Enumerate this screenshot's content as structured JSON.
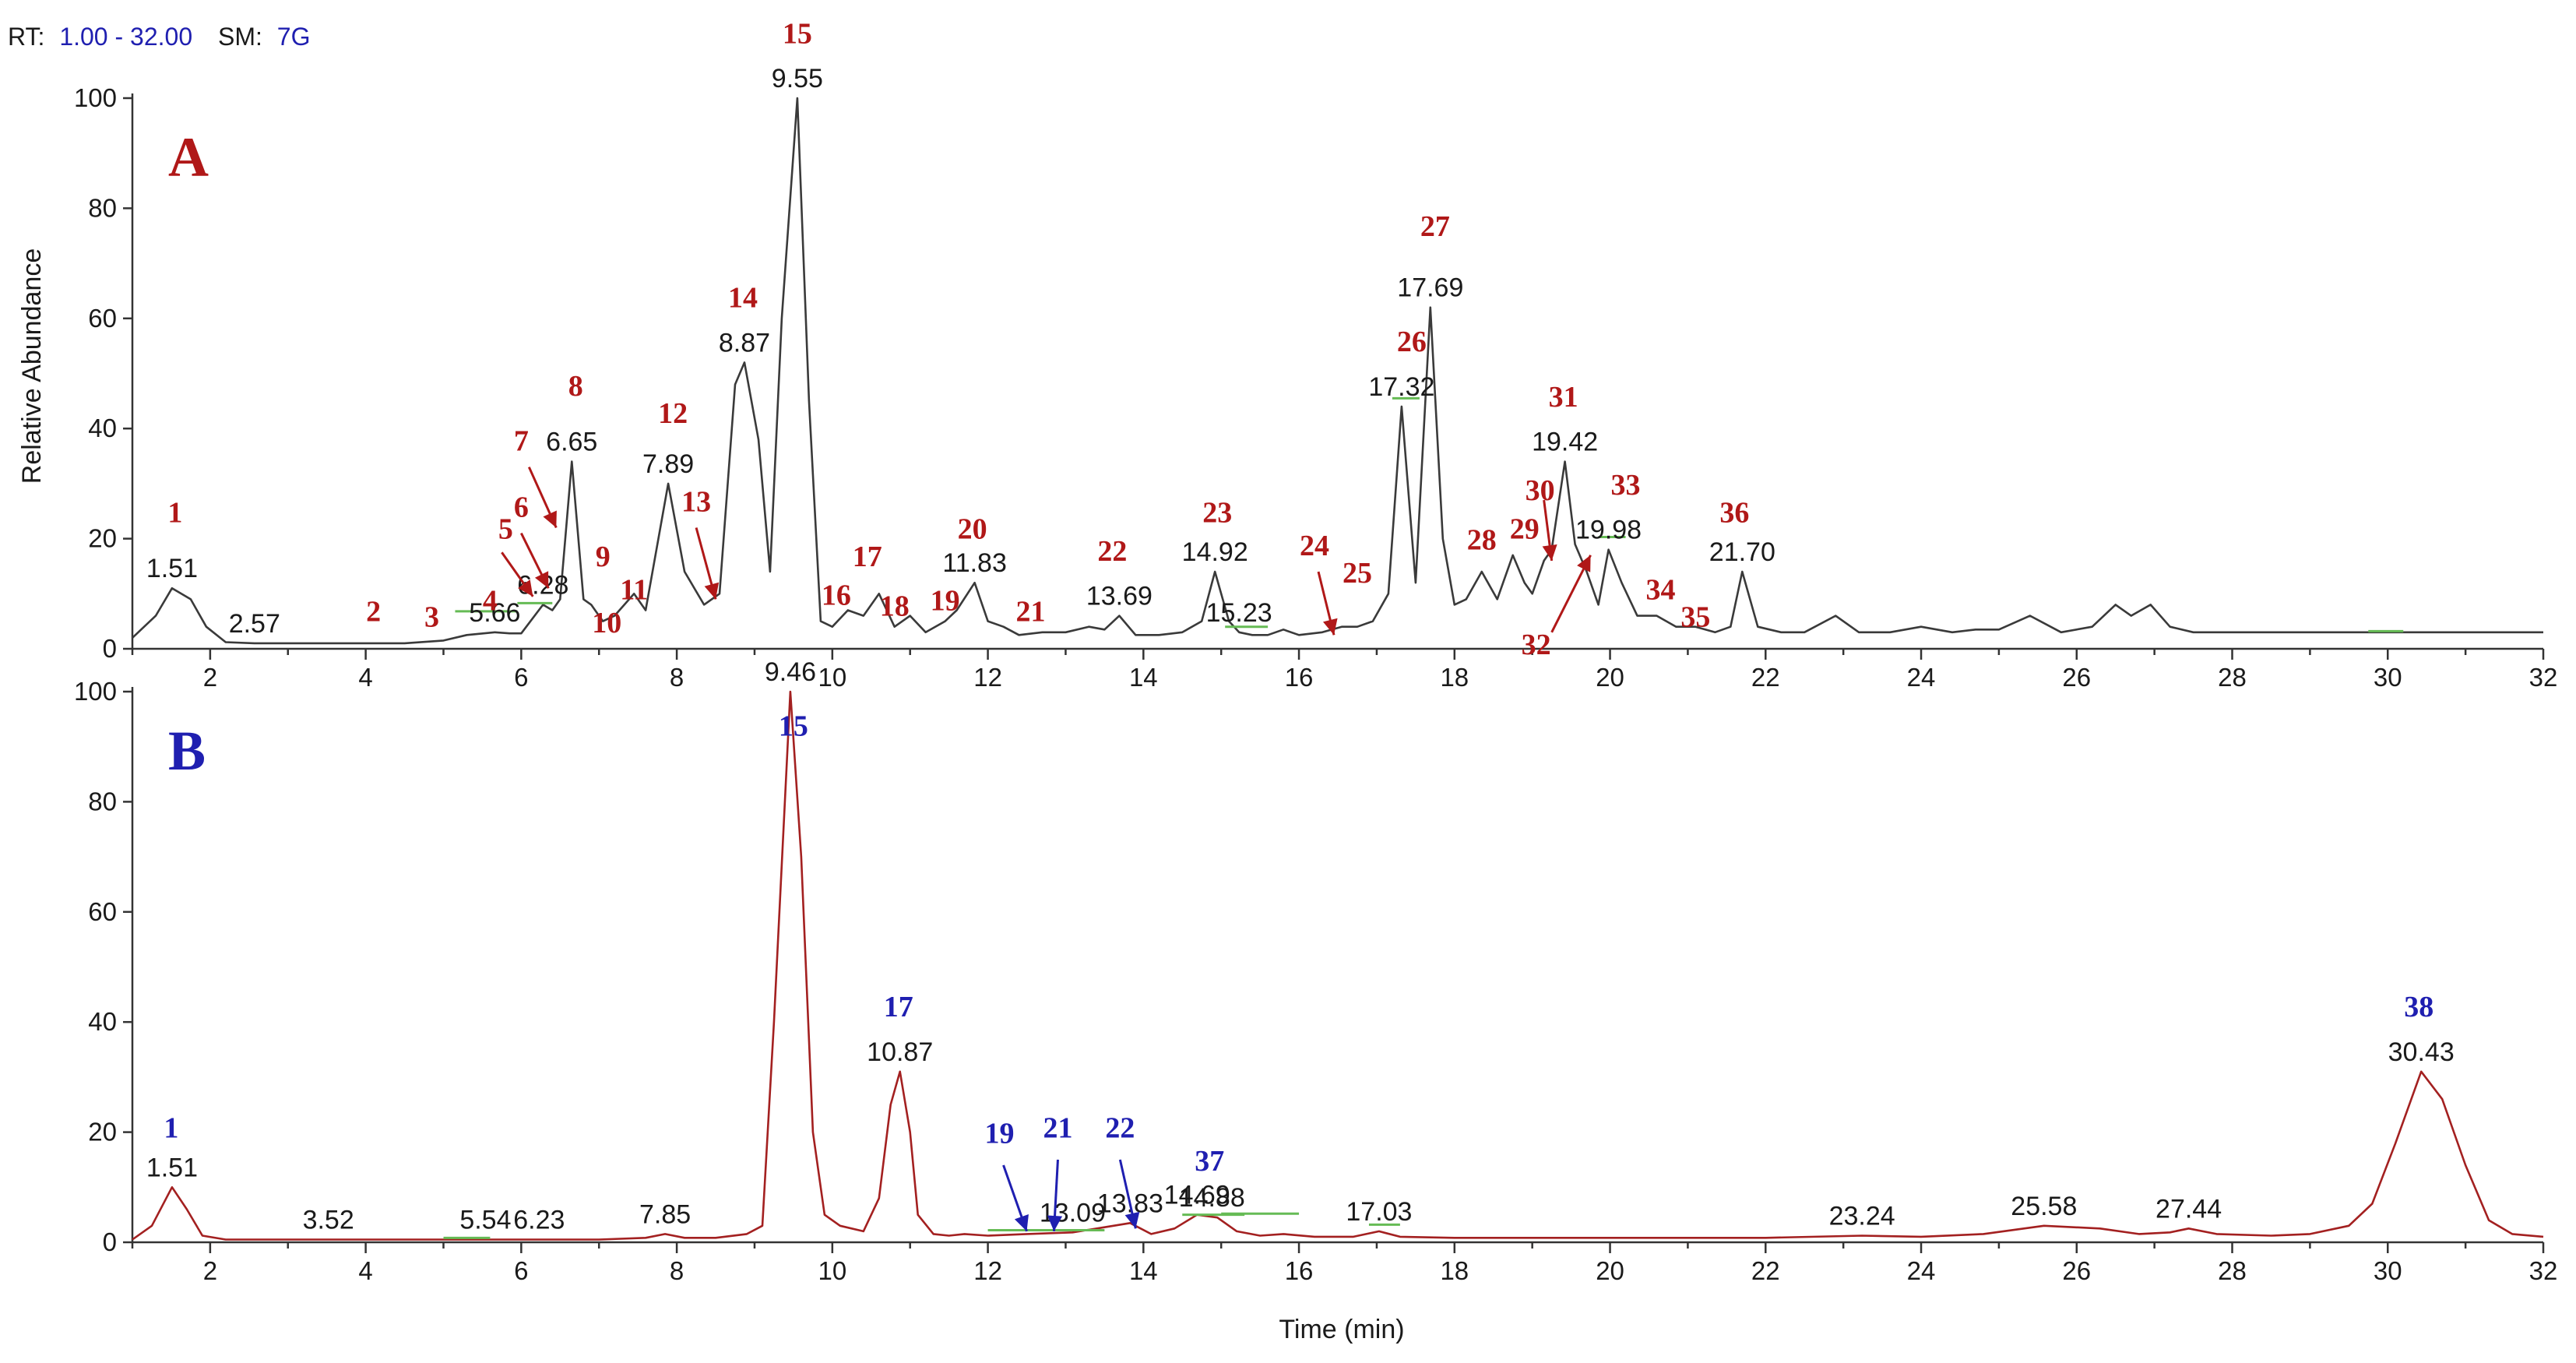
{
  "header": {
    "rt_prefix": "RT:",
    "rt_value": "1.00 - 32.00",
    "sm_prefix": "SM:",
    "sm_value": "7G"
  },
  "colors": {
    "trace_a": "#3a3a3a",
    "trace_b": "#a32020",
    "peak_num_a": "#b01818",
    "peak_num_b": "#1f1fb0",
    "header_value": "#1f1fb0",
    "baseline_marker": "#66bb55"
  },
  "chart_data": [
    {
      "type": "line",
      "panel_letter": "A",
      "xlabel": "",
      "ylabel": "Relative Abundance",
      "xlim": [
        1,
        32
      ],
      "ylim": [
        0,
        100
      ],
      "x_ticks": [
        "2",
        "4",
        "6",
        "8",
        "10",
        "12",
        "14",
        "16",
        "18",
        "20",
        "22",
        "24",
        "26",
        "28",
        "30",
        "32"
      ],
      "y_ticks": [
        "0",
        "20",
        "40",
        "60",
        "80",
        "100"
      ],
      "series": [
        {
          "color": "#3a3a3a",
          "x": [
            1.0,
            1.3,
            1.51,
            1.75,
            1.95,
            2.2,
            2.57,
            3.5,
            4.5,
            5.0,
            5.3,
            5.66,
            5.85,
            6.0,
            6.28,
            6.4,
            6.5,
            6.65,
            6.8,
            6.9,
            7.05,
            7.2,
            7.45,
            7.6,
            7.89,
            8.1,
            8.35,
            8.55,
            8.75,
            8.87,
            9.05,
            9.2,
            9.35,
            9.55,
            9.7,
            9.85,
            10.0,
            10.2,
            10.4,
            10.6,
            10.8,
            11.0,
            11.2,
            11.45,
            11.6,
            11.83,
            12.0,
            12.2,
            12.4,
            12.7,
            13.0,
            13.3,
            13.5,
            13.69,
            13.9,
            14.2,
            14.5,
            14.75,
            14.92,
            15.1,
            15.23,
            15.4,
            15.6,
            15.8,
            16.0,
            16.3,
            16.55,
            16.75,
            16.95,
            17.15,
            17.32,
            17.5,
            17.69,
            17.85,
            18.0,
            18.15,
            18.35,
            18.55,
            18.75,
            18.9,
            19.0,
            19.15,
            19.25,
            19.42,
            19.55,
            19.7,
            19.85,
            19.98,
            20.15,
            20.35,
            20.6,
            20.85,
            21.1,
            21.35,
            21.55,
            21.7,
            21.9,
            22.2,
            22.5,
            22.9,
            23.2,
            23.6,
            24.0,
            24.4,
            24.7,
            25.0,
            25.4,
            25.8,
            26.2,
            26.5,
            26.7,
            26.95,
            27.2,
            27.5,
            28.0,
            29.0,
            30.0,
            31.0,
            32.0
          ],
          "y": [
            2,
            6,
            11,
            9,
            4,
            1.2,
            1,
            1,
            1,
            1.5,
            2.5,
            3,
            2.8,
            2.8,
            8,
            7,
            9,
            34,
            9,
            8,
            5,
            6,
            10,
            7,
            30,
            14,
            8,
            10,
            48,
            52,
            38,
            14,
            60,
            100,
            45,
            5,
            4,
            7,
            6,
            10,
            4,
            6,
            3,
            5,
            7,
            12,
            5,
            4,
            2.5,
            3,
            3,
            4,
            3.5,
            6,
            2.5,
            2.5,
            3,
            5,
            14,
            5,
            3,
            2.5,
            2.5,
            3.5,
            2.5,
            3,
            4,
            4,
            5,
            10,
            44,
            12,
            62,
            20,
            8,
            9,
            14,
            9,
            17,
            12,
            10,
            16,
            18,
            34,
            19,
            14,
            8,
            18,
            12,
            6,
            6,
            4,
            4,
            3,
            4,
            14,
            4,
            3,
            3,
            6,
            3,
            3,
            4,
            3,
            3.5,
            3.5,
            6,
            3,
            4,
            8,
            6,
            8,
            4,
            3,
            3,
            3,
            3,
            3,
            3
          ]
        }
      ],
      "rt_labels": [
        {
          "x": 1.51,
          "y": 11,
          "text": "1.51"
        },
        {
          "x": 2.57,
          "y": 1,
          "text": "2.57"
        },
        {
          "x": 5.66,
          "y": 3,
          "text": "5.66"
        },
        {
          "x": 6.28,
          "y": 8,
          "text": "6.28"
        },
        {
          "x": 6.65,
          "y": 34,
          "text": "6.65"
        },
        {
          "x": 7.89,
          "y": 30,
          "text": "7.89"
        },
        {
          "x": 8.87,
          "y": 52,
          "text": "8.87"
        },
        {
          "x": 9.55,
          "y": 100,
          "text": "9.55"
        },
        {
          "x": 11.83,
          "y": 12,
          "text": "11.83"
        },
        {
          "x": 13.69,
          "y": 6,
          "text": "13.69"
        },
        {
          "x": 14.92,
          "y": 14,
          "text": "14.92"
        },
        {
          "x": 15.23,
          "y": 3,
          "text": "15.23"
        },
        {
          "x": 17.32,
          "y": 44,
          "text": "17.32"
        },
        {
          "x": 17.69,
          "y": 62,
          "text": "17.69"
        },
        {
          "x": 19.42,
          "y": 34,
          "text": "19.42"
        },
        {
          "x": 19.98,
          "y": 18,
          "text": "19.98"
        },
        {
          "x": 21.7,
          "y": 14,
          "text": "21.70"
        }
      ],
      "peak_numbers": [
        {
          "text": "1",
          "x": 1.55,
          "y": 23
        },
        {
          "text": "2",
          "x": 4.1,
          "y": 5
        },
        {
          "text": "3",
          "x": 4.85,
          "y": 4
        },
        {
          "text": "4",
          "x": 5.6,
          "y": 7
        },
        {
          "text": "5",
          "x": 5.8,
          "y": 20
        },
        {
          "text": "6",
          "x": 6.0,
          "y": 24
        },
        {
          "text": "7",
          "x": 6.0,
          "y": 36
        },
        {
          "text": "8",
          "x": 6.7,
          "y": 46
        },
        {
          "text": "9",
          "x": 7.05,
          "y": 15
        },
        {
          "text": "10",
          "x": 7.1,
          "y": 3
        },
        {
          "text": "11",
          "x": 7.45,
          "y": 9
        },
        {
          "text": "12",
          "x": 7.95,
          "y": 41
        },
        {
          "text": "13",
          "x": 8.25,
          "y": 25
        },
        {
          "text": "14",
          "x": 8.85,
          "y": 62
        },
        {
          "text": "15",
          "x": 9.55,
          "y": 110
        },
        {
          "text": "16",
          "x": 10.05,
          "y": 8
        },
        {
          "text": "17",
          "x": 10.45,
          "y": 15
        },
        {
          "text": "18",
          "x": 10.8,
          "y": 6
        },
        {
          "text": "19",
          "x": 11.45,
          "y": 7
        },
        {
          "text": "20",
          "x": 11.8,
          "y": 20
        },
        {
          "text": "21",
          "x": 12.55,
          "y": 5
        },
        {
          "text": "22",
          "x": 13.6,
          "y": 16
        },
        {
          "text": "23",
          "x": 14.95,
          "y": 23
        },
        {
          "text": "24",
          "x": 16.2,
          "y": 17
        },
        {
          "text": "25",
          "x": 16.75,
          "y": 12
        },
        {
          "text": "26",
          "x": 17.45,
          "y": 54
        },
        {
          "text": "27",
          "x": 17.75,
          "y": 75
        },
        {
          "text": "28",
          "x": 18.35,
          "y": 18
        },
        {
          "text": "29",
          "x": 18.9,
          "y": 20
        },
        {
          "text": "30",
          "x": 19.1,
          "y": 27
        },
        {
          "text": "31",
          "x": 19.4,
          "y": 44
        },
        {
          "text": "32",
          "x": 19.05,
          "y": -1
        },
        {
          "text": "33",
          "x": 20.2,
          "y": 28
        },
        {
          "text": "34",
          "x": 20.65,
          "y": 9
        },
        {
          "text": "35",
          "x": 21.1,
          "y": 4
        },
        {
          "text": "36",
          "x": 21.6,
          "y": 23
        }
      ],
      "peak_arrows": [
        {
          "from": [
            5.75,
            17.5
          ],
          "to": [
            6.15,
            9.5
          ]
        },
        {
          "from": [
            6.0,
            21
          ],
          "to": [
            6.35,
            11
          ]
        },
        {
          "from": [
            6.1,
            33
          ],
          "to": [
            6.45,
            22
          ]
        },
        {
          "from": [
            8.25,
            22
          ],
          "to": [
            8.5,
            9
          ]
        },
        {
          "from": [
            16.25,
            14
          ],
          "to": [
            16.45,
            2.5
          ]
        },
        {
          "from": [
            19.15,
            27
          ],
          "to": [
            19.25,
            16
          ]
        },
        {
          "from": [
            19.25,
            3
          ],
          "to": [
            19.75,
            17
          ]
        }
      ],
      "baseline_marks": [
        {
          "x1": 5.15,
          "x2": 5.95,
          "y": 6.8
        },
        {
          "x1": 5.95,
          "x2": 6.4,
          "y": 8.3
        },
        {
          "x1": 15.05,
          "x2": 15.6,
          "y": 4.0
        },
        {
          "x1": 17.2,
          "x2": 17.55,
          "y": 45.5
        },
        {
          "x1": 19.85,
          "x2": 20.2,
          "y": 20.3
        },
        {
          "x1": 29.75,
          "x2": 30.2,
          "y": 3.2
        }
      ]
    },
    {
      "type": "line",
      "panel_letter": "B",
      "xlabel": "Time (min)",
      "ylabel": "",
      "xlim": [
        1,
        32
      ],
      "ylim": [
        0,
        100
      ],
      "x_ticks": [
        "2",
        "4",
        "6",
        "8",
        "10",
        "12",
        "14",
        "16",
        "18",
        "20",
        "22",
        "24",
        "26",
        "28",
        "30",
        "32"
      ],
      "y_ticks": [
        "0",
        "20",
        "40",
        "60",
        "80",
        "100"
      ],
      "series": [
        {
          "color": "#a32020",
          "x": [
            1.0,
            1.25,
            1.51,
            1.7,
            1.9,
            2.2,
            3.0,
            3.52,
            4.5,
            5.54,
            6.23,
            7.0,
            7.6,
            7.85,
            8.1,
            8.5,
            8.9,
            9.1,
            9.25,
            9.46,
            9.6,
            9.75,
            9.9,
            10.1,
            10.4,
            10.6,
            10.75,
            10.87,
            11.0,
            11.1,
            11.3,
            11.5,
            11.7,
            12.0,
            12.5,
            13.09,
            13.4,
            13.83,
            14.1,
            14.4,
            14.69,
            14.95,
            15.2,
            15.5,
            15.8,
            16.2,
            16.7,
            17.03,
            17.3,
            18.0,
            20.0,
            22.0,
            23.24,
            24.0,
            24.8,
            25.58,
            26.3,
            26.8,
            27.2,
            27.44,
            27.8,
            28.5,
            29.0,
            29.5,
            29.8,
            30.1,
            30.43,
            30.7,
            31.0,
            31.3,
            31.6,
            32.0
          ],
          "y": [
            0.5,
            3,
            10,
            6,
            1.2,
            0.5,
            0.5,
            0.5,
            0.5,
            0.5,
            0.5,
            0.5,
            0.8,
            1.5,
            0.8,
            0.8,
            1.5,
            3,
            40,
            100,
            70,
            20,
            5,
            3,
            2,
            8,
            25,
            31,
            20,
            5,
            1.5,
            1.2,
            1.5,
            1.2,
            1.5,
            1.8,
            2.5,
            3.5,
            1.5,
            2.5,
            5,
            4.5,
            2,
            1.2,
            1.5,
            1,
            1,
            2,
            1,
            0.8,
            0.8,
            0.8,
            1.2,
            1,
            1.5,
            3,
            2.5,
            1.5,
            1.8,
            2.5,
            1.5,
            1.2,
            1.5,
            3,
            7,
            18,
            31,
            26,
            14,
            4,
            1.5,
            1
          ]
        }
      ],
      "rt_labels": [
        {
          "x": 1.51,
          "y": 10,
          "text": "1.51"
        },
        {
          "x": 3.52,
          "y": 0.5,
          "text": "3.52"
        },
        {
          "x": 5.54,
          "y": 0.5,
          "text": "5.54"
        },
        {
          "x": 6.23,
          "y": 0.5,
          "text": "6.23"
        },
        {
          "x": 7.85,
          "y": 1.5,
          "text": "7.85"
        },
        {
          "x": 9.46,
          "y": 100,
          "text": "9.46"
        },
        {
          "x": 10.87,
          "y": 31,
          "text": "10.87"
        },
        {
          "x": 13.09,
          "y": 1.8,
          "text": "13.09"
        },
        {
          "x": 13.83,
          "y": 3.5,
          "text": "13.83"
        },
        {
          "x": 14.69,
          "y": 5,
          "text": "14.69"
        },
        {
          "x": 14.88,
          "y": 4.5,
          "text": "14.88"
        },
        {
          "x": 17.03,
          "y": 2,
          "text": "17.03"
        },
        {
          "x": 23.24,
          "y": 1.2,
          "text": "23.24"
        },
        {
          "x": 25.58,
          "y": 3,
          "text": "25.58"
        },
        {
          "x": 27.44,
          "y": 2.5,
          "text": "27.44"
        },
        {
          "x": 30.43,
          "y": 31,
          "text": "30.43"
        }
      ],
      "peak_numbers": [
        {
          "text": "1",
          "x": 1.5,
          "y": 19
        },
        {
          "text": "15",
          "x": 9.5,
          "y": 92
        },
        {
          "text": "17",
          "x": 10.85,
          "y": 41
        },
        {
          "text": "19",
          "x": 12.15,
          "y": 18
        },
        {
          "text": "21",
          "x": 12.9,
          "y": 19
        },
        {
          "text": "22",
          "x": 13.7,
          "y": 19
        },
        {
          "text": "37",
          "x": 14.85,
          "y": 13
        },
        {
          "text": "38",
          "x": 30.4,
          "y": 41
        }
      ],
      "peak_arrows": [
        {
          "from": [
            12.2,
            14
          ],
          "to": [
            12.5,
            2
          ]
        },
        {
          "from": [
            12.9,
            15
          ],
          "to": [
            12.85,
            2
          ]
        },
        {
          "from": [
            13.7,
            15
          ],
          "to": [
            13.9,
            2.5
          ]
        }
      ],
      "baseline_marks": [
        {
          "x1": 5.0,
          "x2": 5.6,
          "y": 0.8
        },
        {
          "x1": 12.0,
          "x2": 13.5,
          "y": 2.2
        },
        {
          "x1": 14.5,
          "x2": 15.3,
          "y": 5.0
        },
        {
          "x1": 15.0,
          "x2": 16.0,
          "y": 5.2
        },
        {
          "x1": 16.9,
          "x2": 17.3,
          "y": 3.2
        }
      ]
    }
  ]
}
